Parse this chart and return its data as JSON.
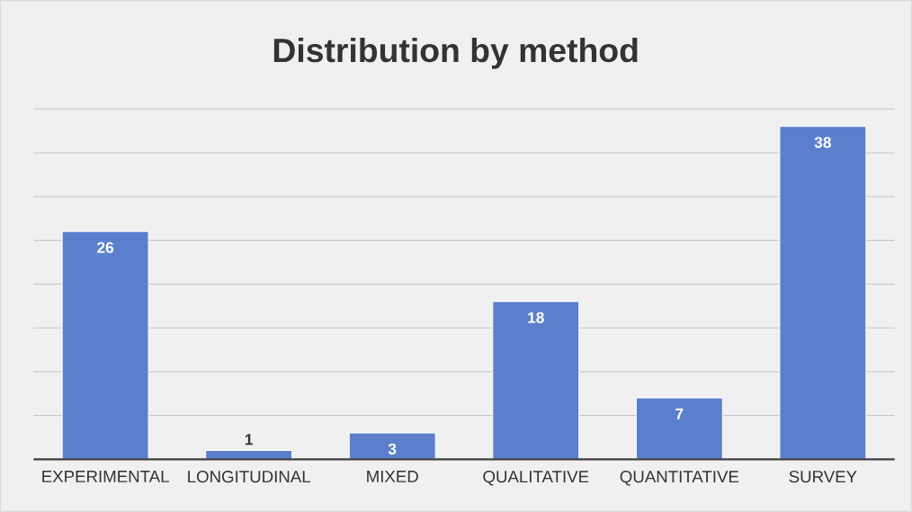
{
  "chart_data": {
    "type": "bar",
    "title": "Distribution by method",
    "categories": [
      "EXPERIMENTAL",
      "LONGITUDINAL",
      "MIXED",
      "QUALITATIVE",
      "QUANTITATIVE",
      "SURVEY"
    ],
    "values": [
      26,
      1,
      3,
      18,
      7,
      38
    ],
    "color": "#5b7fcc",
    "ylim": [
      0,
      40
    ],
    "yticks": [
      {
        "value": 0,
        "label": null
      },
      {
        "value": 5,
        "label": null
      },
      {
        "value": 10,
        "label": null
      },
      {
        "value": 15,
        "label": null
      },
      {
        "value": 20,
        "label": null
      },
      {
        "value": 25,
        "label": null
      },
      {
        "value": 30,
        "label": null
      },
      {
        "value": 35,
        "label": null
      },
      {
        "value": 40,
        "label": null
      }
    ],
    "grid": "y",
    "tick_labels": "x",
    "data_labels": true
  }
}
